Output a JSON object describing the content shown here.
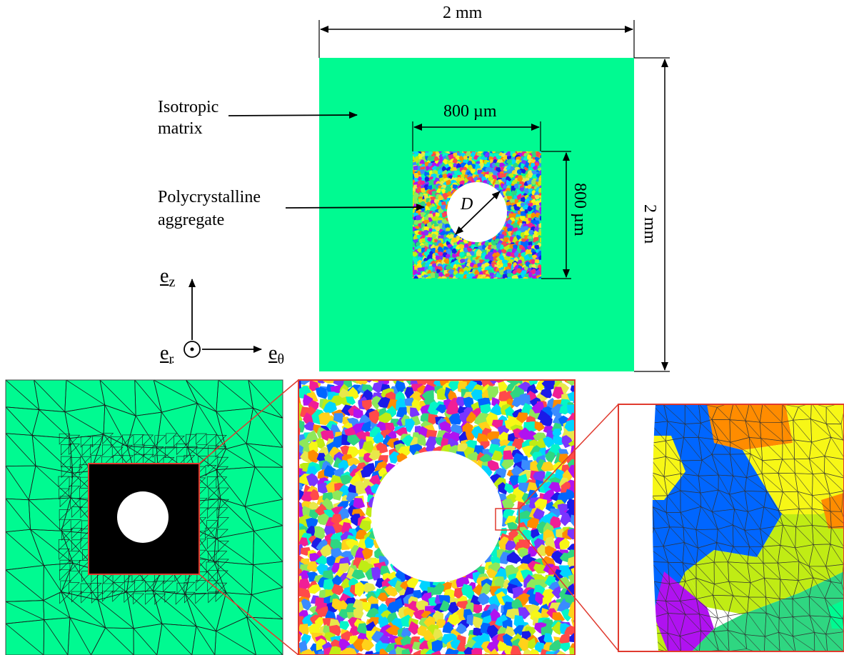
{
  "colors": {
    "matrix": "#00fa91",
    "mesh_dense": "#000000",
    "zoom_frame": "#e03a2f",
    "grain_palette": [
      "#0066ff",
      "#f7f716",
      "#c0ec14",
      "#ff8c00",
      "#b012f0",
      "#00d4ff",
      "#2fd681",
      "#f01e96",
      "#1a1ae8",
      "#8ee85a",
      "#ffd21a",
      "#7a35ff",
      "#ff4a4a",
      "#05f5c8",
      "#3a8cff",
      "#e8e84a"
    ]
  },
  "dimensions": {
    "matrix_width": "2 mm",
    "matrix_height": "2 mm",
    "aggregate_width": "800 µm",
    "aggregate_height": "800 µm",
    "hole_diameter": "D"
  },
  "labels": {
    "matrix_line1": "Isotropic",
    "matrix_line2": "matrix",
    "aggregate_line1": "Polycrystalline",
    "aggregate_line2": "aggregate"
  },
  "axes": {
    "vertical": {
      "base": "e",
      "sub": "z"
    },
    "horizontal": {
      "base": "e",
      "sub": "θ"
    },
    "out_of_plane": {
      "base": "e",
      "sub": "r"
    }
  },
  "panels": {
    "mesh_overview": {
      "icon": "finite-element-mesh"
    },
    "grain_map": {
      "icon": "grain-map"
    },
    "grain_mesh_zoom": {
      "icon": "zoomed-grain-mesh"
    }
  }
}
